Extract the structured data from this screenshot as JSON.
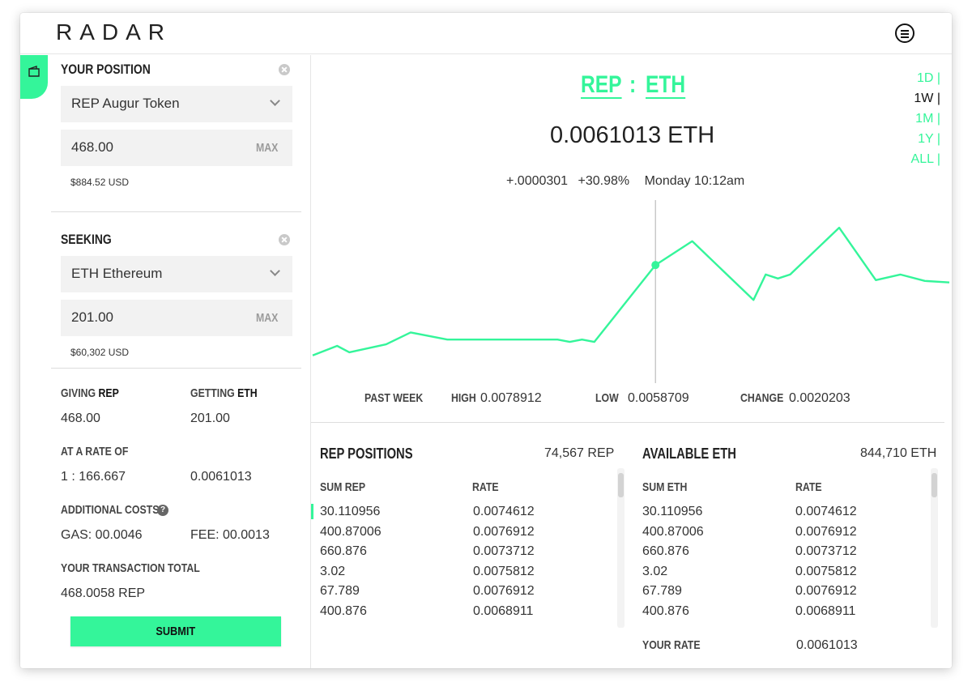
{
  "app": {
    "logo": "RADAR"
  },
  "position": {
    "title": "YOUR POSITION",
    "token": "REP Augur Token",
    "amount": "468.00",
    "max_label": "MAX",
    "usd": "$884.52 USD"
  },
  "seeking": {
    "title": "SEEKING",
    "token": "ETH Ethereum",
    "amount": "201.00",
    "max_label": "MAX",
    "usd": "$60,302 USD"
  },
  "summary": {
    "giving_label": "GIVING",
    "giving_token": "REP",
    "giving_value": "468.00",
    "getting_label": "GETTING",
    "getting_token": "ETH",
    "getting_value": "201.00",
    "rate_label": "AT A RATE OF",
    "rate_ratio": "1 : 166.667",
    "rate_value": "0.0061013",
    "costs_label": "ADDITIONAL COSTS",
    "gas": "GAS: 00.0046",
    "fee": "FEE: 00.0013",
    "total_label": "YOUR TRANSACTION TOTAL",
    "total_value": "468.0058 REP",
    "submit_label": "SUBMIT"
  },
  "market": {
    "base": "REP",
    "separator": ":",
    "quote": "ETH",
    "price": "0.0061013 ETH",
    "change_abs": "+.0000301",
    "change_pct": "+30.98%",
    "timestamp": "Monday 10:12am",
    "timeframes": [
      "1D  |",
      "1W  |",
      "1M  |",
      "1Y  |",
      "ALL  |"
    ],
    "active_timeframe": 1
  },
  "chart_data": {
    "type": "line",
    "title": "",
    "xlabel": "",
    "ylabel": "",
    "series": [
      {
        "values": [
          0.00598,
          0.0061,
          0.00602,
          0.00612,
          0.00627,
          0.00618,
          0.00618,
          0.00618,
          0.00618,
          0.00618,
          0.00615,
          0.00618,
          0.00615,
          0.00712,
          0.00742,
          0.00668,
          0.007,
          0.00695,
          0.007,
          0.00759,
          0.00693,
          0.007,
          0.00692,
          0.0069
        ]
      }
    ],
    "x": [
      0,
      2,
      3,
      6,
      8,
      11,
      13,
      15,
      17,
      20,
      21,
      22,
      23,
      28,
      31,
      36,
      37,
      38,
      39,
      43,
      46,
      48,
      50,
      52
    ],
    "highlight_index": 13,
    "ylim": [
      0.0056,
      0.008
    ],
    "grid": false,
    "legend": "none"
  },
  "stats": {
    "period_label": "PAST WEEK",
    "high_label": "HIGH",
    "high": "0.0078912",
    "low_label": "LOW",
    "low": "0.0058709",
    "change_label": "CHANGE",
    "change": "0.0020203"
  },
  "rep_book": {
    "title": "REP POSITIONS",
    "total": "74,567 REP",
    "col_sum": "SUM REP",
    "col_rate": "RATE",
    "rows": [
      {
        "sum": "30.110956",
        "rate": "0.0074612"
      },
      {
        "sum": "400.87006",
        "rate": "0.0076912"
      },
      {
        "sum": "660.876",
        "rate": "0.0073712"
      },
      {
        "sum": "3.02",
        "rate": "0.0075812"
      },
      {
        "sum": "67.789",
        "rate": "0.0076912"
      },
      {
        "sum": "400.876",
        "rate": "0.0068911"
      }
    ]
  },
  "eth_book": {
    "title": "AVAILABLE ETH",
    "total": "844,710 ETH",
    "col_sum": "SUM ETH",
    "col_rate": "RATE",
    "rows": [
      {
        "sum": "30.110956",
        "rate": "0.0074612"
      },
      {
        "sum": "400.87006",
        "rate": "0.0076912"
      },
      {
        "sum": "660.876",
        "rate": "0.0073712"
      },
      {
        "sum": "3.02",
        "rate": "0.0075812"
      },
      {
        "sum": "67.789",
        "rate": "0.0076912"
      },
      {
        "sum": "400.876",
        "rate": "0.0068911"
      }
    ],
    "your_rate_label": "YOUR RATE",
    "your_rate": "0.0061013"
  },
  "colors": {
    "accent": "#34f59a",
    "text": "#222222",
    "muted": "#9a9a9a",
    "field": "#f2f2f2"
  },
  "icons": {
    "side_tab": "wallet-icon",
    "menu": "menu-icon",
    "clear": "clear-icon",
    "help": "help-icon",
    "dropdown": "chevron-down-icon"
  }
}
